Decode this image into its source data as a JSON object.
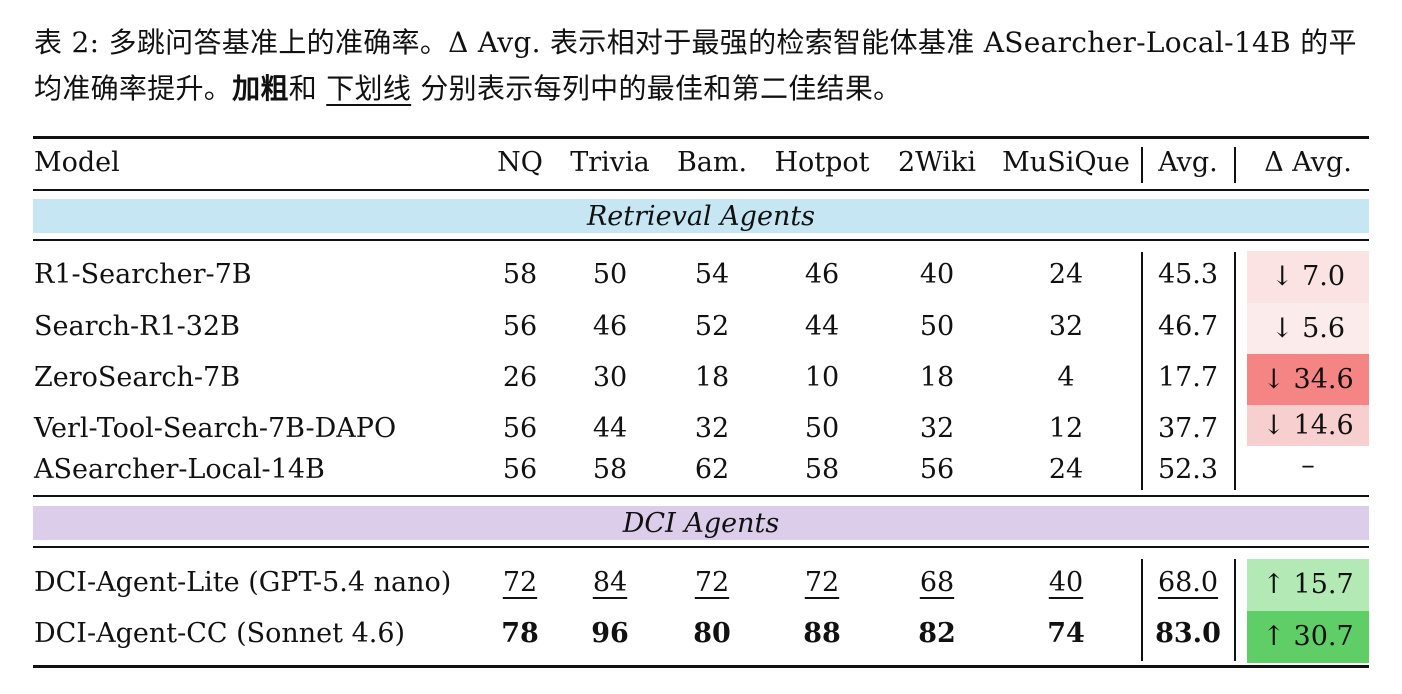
{
  "caption": {
    "prefix": "表 2: 多跳问答基准上的准确率。Δ Avg. 表示相对于最强的检索智能体基准 ASearcher-Local-14B 的平均准确率提升。",
    "bold_word": "加粗",
    "mid": "和 ",
    "underline_word": "下划线",
    "suffix": " 分别表示每列中的最佳和第二佳结果。"
  },
  "header": [
    "Model",
    "NQ",
    "Trivia",
    "Bam.",
    "Hotpot",
    "2Wiki",
    "MuSiQue",
    "Avg.",
    "Δ Avg."
  ],
  "sections": [
    {
      "title": "Retrieval Agents",
      "color": "#c7e6f4",
      "rows": [
        {
          "model": "R1-Searcher-7B",
          "values": [
            "58",
            "50",
            "54",
            "46",
            "40",
            "24"
          ],
          "avg": "45.3",
          "delta": "↓ 7.0",
          "delta_color": "#fbe3e3"
        },
        {
          "model": "Search-R1-32B",
          "values": [
            "56",
            "46",
            "52",
            "44",
            "50",
            "32"
          ],
          "avg": "46.7",
          "delta": "↓ 5.6",
          "delta_color": "#fcebeb"
        },
        {
          "model": "ZeroSearch-7B",
          "values": [
            "26",
            "30",
            "18",
            "10",
            "18",
            "4"
          ],
          "avg": "17.7",
          "delta": "↓ 34.6",
          "delta_color": "#f58585"
        },
        {
          "model": "Verl-Tool-Search-7B-DAPO",
          "values": [
            "56",
            "44",
            "32",
            "50",
            "32",
            "12"
          ],
          "avg": "37.7",
          "delta": "↓ 14.6",
          "delta_color": "#f8cfcf"
        },
        {
          "model": "ASearcher-Local-14B",
          "values": [
            "56",
            "58",
            "62",
            "58",
            "56",
            "24"
          ],
          "avg": "52.3",
          "delta": "–",
          "delta_color": "#ffffff"
        }
      ]
    },
    {
      "title": "DCI Agents",
      "color": "#dccdea",
      "rows": [
        {
          "model": "DCI-Agent-Lite (GPT-5.4 nano)",
          "values": [
            "72",
            "84",
            "72",
            "72",
            "68",
            "40"
          ],
          "avg": "68.0",
          "delta": "↑ 15.7",
          "delta_color": "#b2e9b4",
          "style": "underline"
        },
        {
          "model": "DCI-Agent-CC (Sonnet 4.6)",
          "values": [
            "78",
            "96",
            "80",
            "88",
            "82",
            "74"
          ],
          "avg": "83.0",
          "delta": "↑ 30.7",
          "delta_color": "#5fce67",
          "style": "bold"
        }
      ]
    }
  ]
}
